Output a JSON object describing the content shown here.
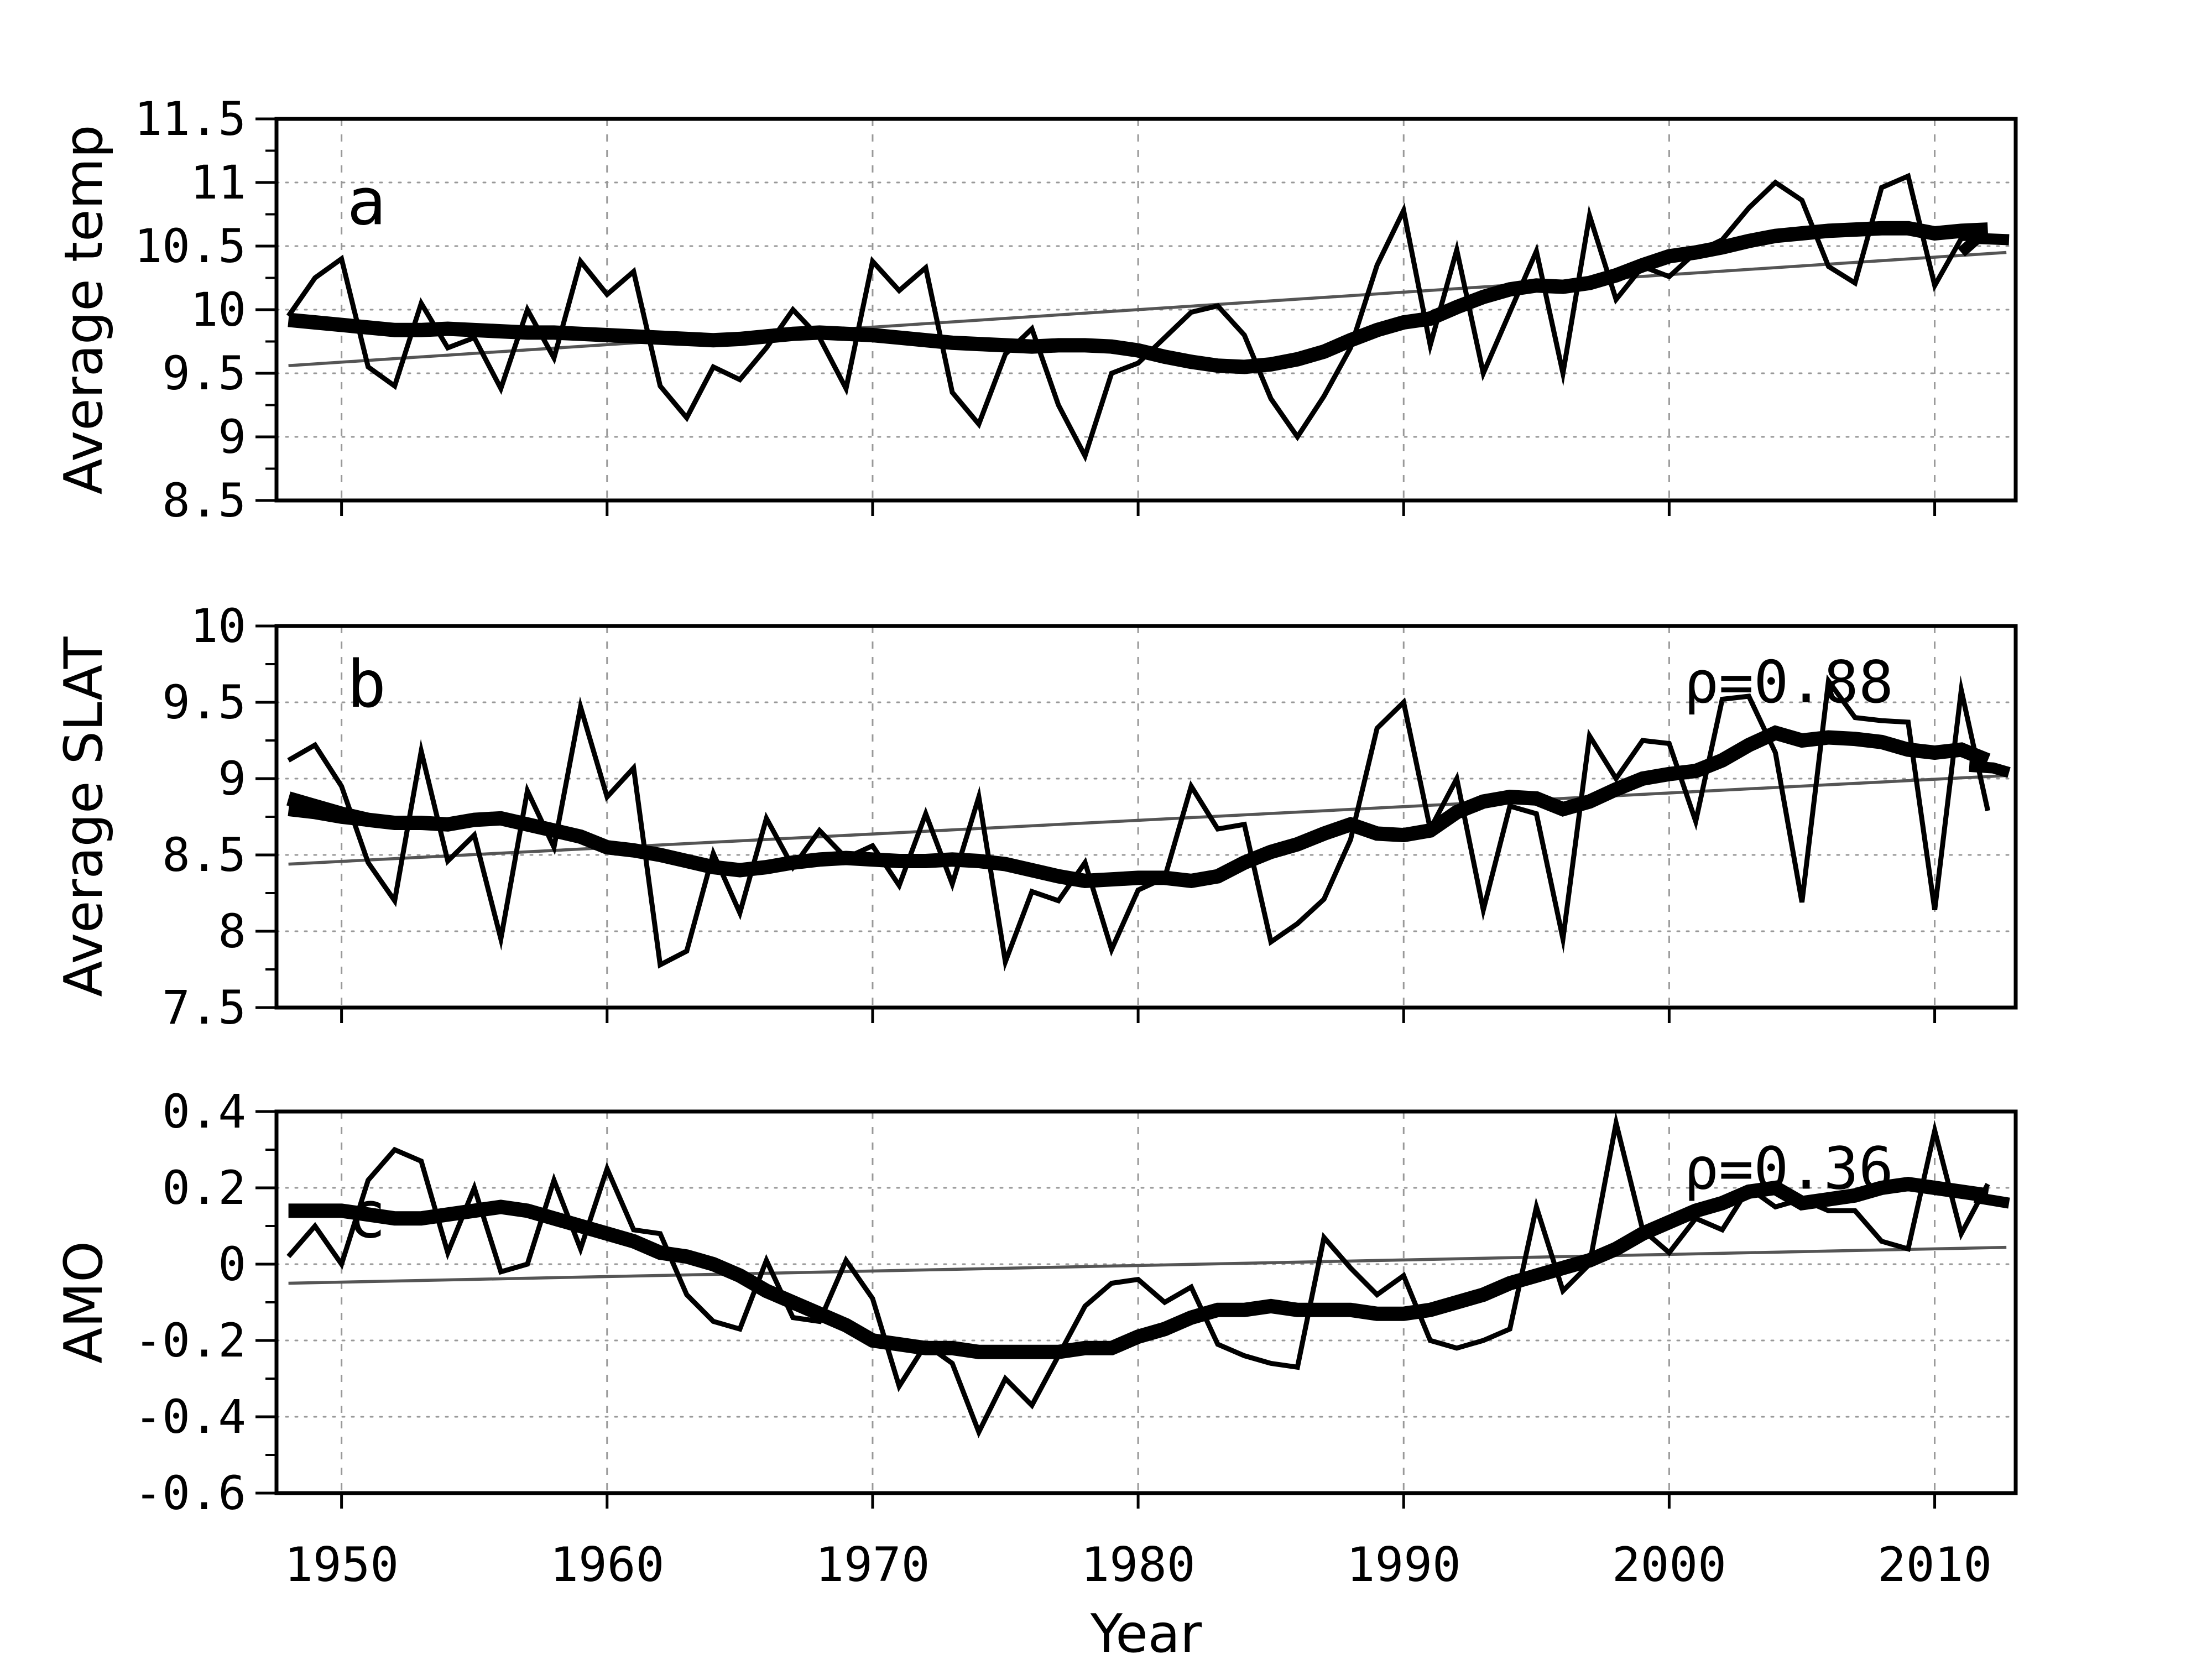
{
  "figure": {
    "xlabel": "Year",
    "x_tick_labels": [
      "1950",
      "1960",
      "1970",
      "1980",
      "1990",
      "2000",
      "2010"
    ],
    "x_ticks": [
      1950,
      1960,
      1970,
      1980,
      1990,
      2000,
      2010
    ],
    "x_range": [
      1947.55,
      2013.05
    ],
    "years": [
      1948,
      1949,
      1950,
      1951,
      1952,
      1953,
      1954,
      1955,
      1956,
      1957,
      1958,
      1959,
      1960,
      1961,
      1962,
      1963,
      1964,
      1965,
      1966,
      1967,
      1968,
      1969,
      1970,
      1971,
      1972,
      1973,
      1974,
      1975,
      1976,
      1977,
      1978,
      1979,
      1980,
      1981,
      1982,
      1983,
      1984,
      1985,
      1986,
      1987,
      1988,
      1989,
      1990,
      1991,
      1992,
      1993,
      1994,
      1995,
      1996,
      1997,
      1998,
      1999,
      2000,
      2001,
      2002,
      2003,
      2004,
      2005,
      2006,
      2007,
      2008,
      2009,
      2010,
      2011,
      2012
    ],
    "colors": {
      "line": "#000000",
      "trend": "#555555",
      "grid": "#999999",
      "background": "#ffffff",
      "text": "#000000"
    }
  },
  "chart_data": [
    {
      "type": "line",
      "panel_label": "a",
      "ylabel": "Average temp",
      "ylim": [
        8.5,
        11.5
      ],
      "y_ticks": [
        8.5,
        9,
        9.5,
        10,
        10.5,
        11,
        11.5
      ],
      "y_tick_labels": [
        "8.5",
        "9",
        "9.5",
        "10",
        "10.5",
        "11",
        "11.5"
      ],
      "y_minor_step": 0.25,
      "annotation": null,
      "label_pos": {
        "year": 1950.2,
        "value": 10.85
      },
      "series": [
        {
          "name": "annual",
          "style": "thin",
          "values": [
            9.95,
            10.25,
            10.4,
            9.55,
            9.4,
            10.05,
            9.7,
            9.78,
            9.38,
            10,
            9.62,
            10.38,
            10.12,
            10.3,
            9.4,
            9.15,
            9.55,
            9.45,
            9.7,
            10,
            9.78,
            9.38,
            10.38,
            10.15,
            10.33,
            9.35,
            9.1,
            9.65,
            9.85,
            9.25,
            8.85,
            9.5,
            9.58,
            9.78,
            9.98,
            10.03,
            9.8,
            9.3,
            9,
            9.32,
            9.7,
            10.35,
            10.78,
            9.72,
            10.47,
            9.5,
            9.98,
            10.46,
            9.5,
            10.74,
            10.08,
            10.34,
            10.26,
            10.45,
            10.55,
            10.8,
            11,
            10.86,
            10.34,
            10.21,
            10.96,
            11.05,
            10.19,
            10.56,
            10.56
          ]
        },
        {
          "name": "smoothed",
          "style": "thick",
          "values": [
            9.92,
            9.9,
            9.88,
            9.86,
            9.84,
            9.84,
            9.85,
            9.84,
            9.83,
            9.82,
            9.82,
            9.81,
            9.8,
            9.79,
            9.78,
            9.77,
            9.76,
            9.77,
            9.79,
            9.81,
            9.82,
            9.81,
            9.8,
            9.78,
            9.76,
            9.74,
            9.73,
            9.72,
            9.71,
            9.72,
            9.72,
            9.71,
            9.68,
            9.63,
            9.59,
            9.56,
            9.55,
            9.57,
            9.61,
            9.67,
            9.76,
            9.84,
            9.9,
            9.93,
            10.02,
            10.1,
            10.16,
            10.19,
            10.18,
            10.21,
            10.27,
            10.35,
            10.42,
            10.45,
            10.49,
            10.54,
            10.58,
            10.6,
            10.62,
            10.63,
            10.64,
            10.64,
            10.6,
            10.62,
            10.63
          ]
        },
        {
          "name": "smoothed-alt",
          "style": "thick2",
          "x": [
            2011,
            2011.6,
            2012.8
          ],
          "values": [
            10.45,
            10.56,
            10.55
          ]
        },
        {
          "name": "trend",
          "style": "trend",
          "x": [
            1948,
            2012.7
          ],
          "values": [
            9.56,
            10.45
          ]
        }
      ]
    },
    {
      "type": "line",
      "panel_label": "b",
      "ylabel": "Average SLAT",
      "ylim": [
        7.5,
        10
      ],
      "y_ticks": [
        7.5,
        8,
        8.5,
        9,
        9.5,
        10
      ],
      "y_tick_labels": [
        "7.5",
        "8",
        "8.5",
        "9",
        "9.5",
        "10"
      ],
      "y_minor_step": 0.25,
      "annotation": {
        "text": "ρ=0.88",
        "year": 2004.5,
        "value": 9.63
      },
      "label_pos": {
        "year": 1950.2,
        "value": 9.62
      },
      "series": [
        {
          "name": "annual",
          "style": "thin",
          "values": [
            9.12,
            9.22,
            8.95,
            8.45,
            8.2,
            9.18,
            8.46,
            8.63,
            7.95,
            8.92,
            8.55,
            9.47,
            8.88,
            9.07,
            7.78,
            7.87,
            8.51,
            8.12,
            8.74,
            8.42,
            8.66,
            8.48,
            8.56,
            8.3,
            8.77,
            8.31,
            8.88,
            7.8,
            8.26,
            8.2,
            8.45,
            7.88,
            8.27,
            8.35,
            8.95,
            8.67,
            8.7,
            7.93,
            8.05,
            8.21,
            8.6,
            9.33,
            9.5,
            8.67,
            9,
            8.14,
            8.82,
            8.77,
            7.95,
            9.28,
            9,
            9.25,
            9.23,
            8.72,
            9.52,
            9.54,
            9.17,
            8.19,
            9.64,
            9.4,
            9.38,
            9.37,
            8.14,
            9.58,
            8.79
          ]
        },
        {
          "name": "smoothed",
          "style": "thick",
          "values": [
            8.87,
            8.82,
            8.77,
            8.73,
            8.71,
            8.71,
            8.7,
            8.73,
            8.74,
            8.7,
            8.66,
            8.62,
            8.55,
            8.53,
            8.5,
            8.46,
            8.42,
            8.4,
            8.42,
            8.45,
            8.47,
            8.48,
            8.47,
            8.46,
            8.46,
            8.47,
            8.46,
            8.44,
            8.4,
            8.36,
            8.33,
            8.34,
            8.35,
            8.35,
            8.33,
            8.36,
            8.45,
            8.52,
            8.57,
            8.64,
            8.7,
            8.64,
            8.63,
            8.66,
            8.78,
            8.85,
            8.88,
            8.87,
            8.8,
            8.85,
            8.93,
            9,
            9.03,
            9.05,
            9.12,
            9.22,
            9.3,
            9.25,
            9.27,
            9.26,
            9.24,
            9.19,
            9.17,
            9.19,
            9.12
          ]
        },
        {
          "name": "smoothed-alt-head",
          "style": "thick2",
          "x": [
            1948,
            1949,
            1950,
            1951,
            1952
          ],
          "values": [
            8.79,
            8.77,
            8.74,
            8.72,
            8.71
          ]
        },
        {
          "name": "smoothed-alt",
          "style": "thick2",
          "x": [
            2011.3,
            2012.2,
            2012.8
          ],
          "values": [
            9.08,
            9.07,
            9.04
          ]
        },
        {
          "name": "trend",
          "style": "trend",
          "x": [
            1948,
            2012.7
          ],
          "values": [
            8.44,
            9.02
          ]
        }
      ]
    },
    {
      "type": "line",
      "panel_label": "c",
      "ylabel": "AMO",
      "ylim": [
        -0.6,
        0.4
      ],
      "y_ticks": [
        -0.6,
        -0.4,
        -0.2,
        0,
        0.2,
        0.4
      ],
      "y_tick_labels": [
        "-0.6",
        "-0.4",
        "-0.2",
        "0",
        "0.2",
        "0.4"
      ],
      "y_minor_step": 0.1,
      "annotation": {
        "text": "ρ=0.36",
        "year": 2004.5,
        "value": 0.25
      },
      "label_pos": {
        "year": 1950.2,
        "value": 0.13
      },
      "series": [
        {
          "name": "annual",
          "style": "thin",
          "values": [
            0.02,
            0.1,
            0,
            0.22,
            0.3,
            0.27,
            0.03,
            0.2,
            -0.02,
            0,
            0.22,
            0.04,
            0.25,
            0.09,
            0.08,
            -0.08,
            -0.15,
            -0.17,
            0.01,
            -0.14,
            -0.15,
            0.01,
            -0.09,
            -0.32,
            -0.21,
            -0.26,
            -0.44,
            -0.3,
            -0.37,
            -0.24,
            -0.11,
            -0.05,
            -0.04,
            -0.1,
            -0.06,
            -0.21,
            -0.24,
            -0.26,
            -0.27,
            0.07,
            -0.01,
            -0.08,
            -0.03,
            -0.2,
            -0.22,
            -0.2,
            -0.17,
            0.15,
            -0.07,
            0,
            0.37,
            0.09,
            0.03,
            0.12,
            0.09,
            0.2,
            0.15,
            0.17,
            0.14,
            0.14,
            0.06,
            0.04,
            0.35,
            0.08,
            0.21
          ]
        },
        {
          "name": "smoothed",
          "style": "thick",
          "values": [
            0.14,
            0.14,
            0.14,
            0.13,
            0.12,
            0.12,
            0.13,
            0.14,
            0.15,
            0.14,
            0.12,
            0.1,
            0.08,
            0.06,
            0.03,
            0.02,
            0,
            -0.03,
            -0.07,
            -0.1,
            -0.13,
            -0.16,
            -0.2,
            -0.21,
            -0.22,
            -0.22,
            -0.23,
            -0.23,
            -0.23,
            -0.23,
            -0.22,
            -0.22,
            -0.19,
            -0.17,
            -0.14,
            -0.12,
            -0.12,
            -0.11,
            -0.12,
            -0.12,
            -0.12,
            -0.13,
            -0.13,
            -0.12,
            -0.1,
            -0.08,
            -0.05,
            -0.03,
            -0.01,
            0.01,
            0.04,
            0.08,
            0.11,
            0.14,
            0.16,
            0.19,
            0.2,
            0.16,
            0.17,
            0.18,
            0.2,
            0.21,
            0.2,
            0.19,
            0.18
          ]
        },
        {
          "name": "smoothed-alt",
          "style": "thick2",
          "x": [
            2011.5,
            2012.8
          ],
          "values": [
            0.175,
            0.16
          ]
        },
        {
          "name": "trend",
          "style": "trend",
          "x": [
            1948,
            2012.7
          ],
          "values": [
            -0.05,
            0.044
          ]
        }
      ]
    }
  ],
  "layout_text": {
    "note": "three stacked time-series panels sharing one x axis"
  }
}
